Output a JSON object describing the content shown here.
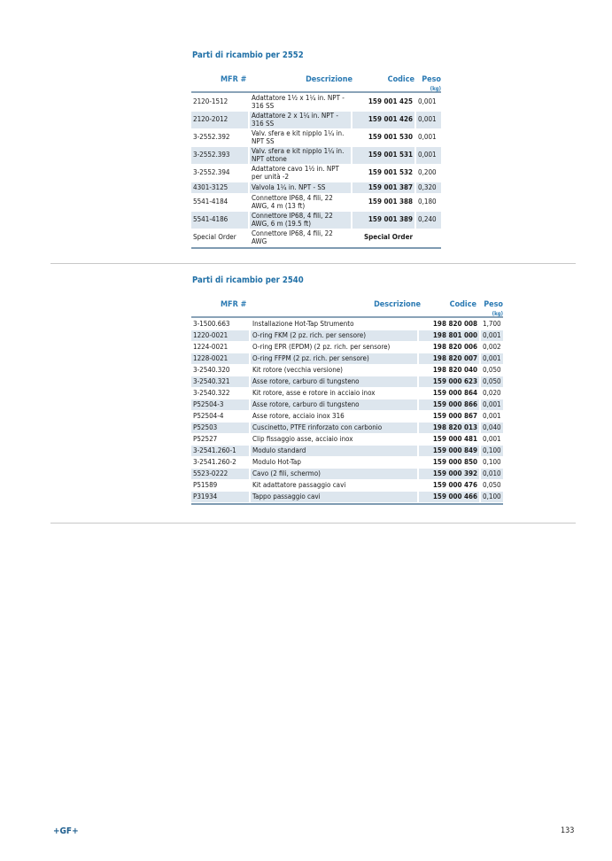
{
  "section1": {
    "title": "Parti di ricambio per 2552",
    "headers": {
      "mfr": "MFR #",
      "desc": "Descrizione",
      "code": "Codice",
      "weight": "Peso",
      "unit": "(kg)"
    },
    "rows": [
      {
        "mfr": "2120-1512",
        "desc": "Adattatore 1½ x 1¼ in. NPT - 316 SS",
        "code": "159 001 425",
        "weight": "0,001"
      },
      {
        "mfr": "2120-2012",
        "desc": "Adattatore 2 x 1¼ in. NPT - 316 SS",
        "code": "159 001 426",
        "weight": "0,001"
      },
      {
        "mfr": "3-2552.392",
        "desc": "Valv. sfera e kit nipplo 1¼ in. NPT SS",
        "code": "159 001 530",
        "weight": "0,001"
      },
      {
        "mfr": "3-2552.393",
        "desc": "Valv. sfera e kit nipplo 1¼ in. NPT ottone",
        "code": "159 001 531",
        "weight": "0,001"
      },
      {
        "mfr": "3-2552.394",
        "desc": "Adattatore cavo 1½ in. NPT per unità -2",
        "code": "159 001 532",
        "weight": "0,200"
      },
      {
        "mfr": "4301-3125",
        "desc": "Valvola 1¼ in. NPT - SS",
        "code": "159 001 387",
        "weight": "0,320"
      },
      {
        "mfr": "5541-4184",
        "desc": "Connettore IP68, 4 fili, 22 AWG, 4 m (13 ft)",
        "code": "159 001 388",
        "weight": "0,180"
      },
      {
        "mfr": "5541-4186",
        "desc": "Connettore IP68, 4 fili, 22 AWG, 6 m (19.5 ft)",
        "code": "159 001 389",
        "weight": "0,240"
      },
      {
        "mfr": "Special Order",
        "desc": "Connettore IP68, 4 fili, 22 AWG",
        "code": "Special Order",
        "weight": ""
      }
    ]
  },
  "section2": {
    "title": "Parti di ricambio per 2540",
    "headers": {
      "mfr": "MFR #",
      "desc": "Descrizione",
      "code": "Codice",
      "weight": "Peso",
      "unit": "(kg)"
    },
    "rows": [
      {
        "mfr": "3-1500.663",
        "desc": "Installazione Hot-Tap Strumento",
        "code": "198 820 008",
        "weight": "1,700"
      },
      {
        "mfr": "1220-0021",
        "desc": "O-ring FKM (2 pz. rich. per sensore)",
        "code": "198 801 000",
        "weight": "0,001"
      },
      {
        "mfr": "1224-0021",
        "desc": "O-ring EPR (EPDM) (2 pz. rich. per sensore)",
        "code": "198 820 006",
        "weight": "0,002"
      },
      {
        "mfr": "1228-0021",
        "desc": "O-ring FFPM (2 pz. rich. per sensore)",
        "code": "198 820 007",
        "weight": "0,001"
      },
      {
        "mfr": "3-2540.320",
        "desc": "Kit rotore (vecchia versione)",
        "code": "198 820 040",
        "weight": "0,050"
      },
      {
        "mfr": "3-2540.321",
        "desc": "Asse rotore, carburo di tungsteno",
        "code": "159 000 623",
        "weight": "0,050"
      },
      {
        "mfr": "3-2540.322",
        "desc": "Kit rotore, asse e rotore in acciaio inox",
        "code": "159 000 864",
        "weight": "0,020"
      },
      {
        "mfr": "P52504-3",
        "desc": "Asse rotore, carburo di tungsteno",
        "code": "159 000 866",
        "weight": "0,001"
      },
      {
        "mfr": "P52504-4",
        "desc": "Asse rotore, acciaio inox 316",
        "code": "159 000 867",
        "weight": "0,001"
      },
      {
        "mfr": "P52503",
        "desc": "Cuscinetto, PTFE rinforzato con carbonio",
        "code": "198 820 013",
        "weight": "0,040"
      },
      {
        "mfr": "P52527",
        "desc": "Clip fissaggio asse, acciaio inox",
        "code": "159 000 481",
        "weight": "0,001"
      },
      {
        "mfr": "3-2541.260-1",
        "desc": "Modulo standard",
        "code": "159 000 849",
        "weight": "0,100"
      },
      {
        "mfr": "3-2541.260-2",
        "desc": "Modulo Hot-Tap",
        "code": "159 000 850",
        "weight": "0,100"
      },
      {
        "mfr": "5523-0222",
        "desc": "Cavo (2 fili, schermo)",
        "code": "159 000 392",
        "weight": "0,010"
      },
      {
        "mfr": "P51589",
        "desc": "Kit adattatore passaggio cavi",
        "code": "159 000 476",
        "weight": "0,050"
      },
      {
        "mfr": "P31934",
        "desc": "Tappo passaggio cavi",
        "code": "159 000 466",
        "weight": "0,100"
      }
    ]
  },
  "footer": {
    "logo": "+GF+",
    "page_number": "133"
  },
  "colors": {
    "accent": "#1f6fa6",
    "row_shade": "#dde6ee"
  }
}
